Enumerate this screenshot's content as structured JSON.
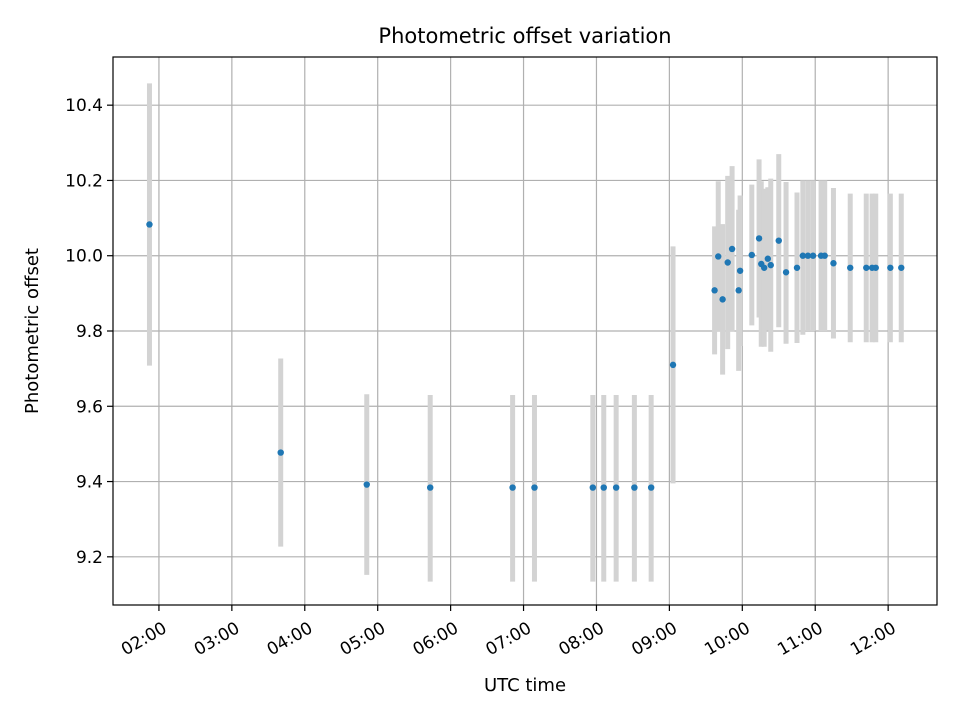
{
  "chart_data": {
    "type": "scatter",
    "title": "Photometric offset variation",
    "xlabel": "UTC time",
    "ylabel": "Photometric offset",
    "x_unit": "hours (UTC)",
    "xlim": [
      1.37,
      12.67
    ],
    "ylim": [
      9.072,
      10.528
    ],
    "grid": true,
    "legend": "none",
    "marker_color": "#1f77b4",
    "errorbar_color": "#d3d3d3",
    "x_ticks": [
      {
        "value": 2,
        "label": "02:00"
      },
      {
        "value": 3,
        "label": "03:00"
      },
      {
        "value": 4,
        "label": "04:00"
      },
      {
        "value": 5,
        "label": "05:00"
      },
      {
        "value": 6,
        "label": "06:00"
      },
      {
        "value": 7,
        "label": "07:00"
      },
      {
        "value": 8,
        "label": "08:00"
      },
      {
        "value": 9,
        "label": "09:00"
      },
      {
        "value": 10,
        "label": "10:00"
      },
      {
        "value": 11,
        "label": "11:00"
      },
      {
        "value": 12,
        "label": "12:00"
      }
    ],
    "y_ticks": [
      {
        "value": 9.2,
        "label": "9.2"
      },
      {
        "value": 9.4,
        "label": "9.4"
      },
      {
        "value": 9.6,
        "label": "9.6"
      },
      {
        "value": 9.8,
        "label": "9.8"
      },
      {
        "value": 10.0,
        "label": "10.0"
      },
      {
        "value": 10.2,
        "label": "10.2"
      },
      {
        "value": 10.4,
        "label": "10.4"
      }
    ],
    "points": [
      {
        "x": 1.87,
        "y": 10.083,
        "lo": 9.708,
        "hi": 10.458
      },
      {
        "x": 3.67,
        "y": 9.477,
        "lo": 9.227,
        "hi": 9.727
      },
      {
        "x": 4.85,
        "y": 9.392,
        "lo": 9.152,
        "hi": 9.632
      },
      {
        "x": 5.72,
        "y": 9.384,
        "lo": 9.134,
        "hi": 9.63
      },
      {
        "x": 6.85,
        "y": 9.384,
        "lo": 9.134,
        "hi": 9.63
      },
      {
        "x": 7.15,
        "y": 9.384,
        "lo": 9.134,
        "hi": 9.63
      },
      {
        "x": 7.95,
        "y": 9.384,
        "lo": 9.134,
        "hi": 9.63
      },
      {
        "x": 8.1,
        "y": 9.384,
        "lo": 9.134,
        "hi": 9.63
      },
      {
        "x": 8.27,
        "y": 9.384,
        "lo": 9.134,
        "hi": 9.63
      },
      {
        "x": 8.52,
        "y": 9.384,
        "lo": 9.134,
        "hi": 9.63
      },
      {
        "x": 8.75,
        "y": 9.384,
        "lo": 9.134,
        "hi": 9.63
      },
      {
        "x": 9.05,
        "y": 9.71,
        "lo": 9.395,
        "hi": 10.025
      },
      {
        "x": 9.62,
        "y": 9.908,
        "lo": 9.738,
        "hi": 10.078
      },
      {
        "x": 9.67,
        "y": 9.998,
        "lo": 9.798,
        "hi": 10.198
      },
      {
        "x": 9.73,
        "y": 9.884,
        "lo": 9.684,
        "hi": 10.084
      },
      {
        "x": 9.8,
        "y": 9.982,
        "lo": 9.752,
        "hi": 10.212
      },
      {
        "x": 9.86,
        "y": 10.018,
        "lo": 9.798,
        "hi": 10.238
      },
      {
        "x": 9.95,
        "y": 9.908,
        "lo": 9.694,
        "hi": 10.122
      },
      {
        "x": 9.97,
        "y": 9.96,
        "lo": 9.76,
        "hi": 10.16
      },
      {
        "x": 10.13,
        "y": 10.002,
        "lo": 9.815,
        "hi": 10.189
      },
      {
        "x": 10.23,
        "y": 10.046,
        "lo": 9.836,
        "hi": 10.256
      },
      {
        "x": 10.26,
        "y": 9.978,
        "lo": 9.758,
        "hi": 10.198
      },
      {
        "x": 10.3,
        "y": 9.968,
        "lo": 9.758,
        "hi": 10.178
      },
      {
        "x": 10.35,
        "y": 9.992,
        "lo": 9.802,
        "hi": 10.182
      },
      {
        "x": 10.39,
        "y": 9.975,
        "lo": 9.745,
        "hi": 10.205
      },
      {
        "x": 10.5,
        "y": 10.04,
        "lo": 9.81,
        "hi": 10.27
      },
      {
        "x": 10.6,
        "y": 9.956,
        "lo": 9.766,
        "hi": 10.196
      },
      {
        "x": 10.75,
        "y": 9.968,
        "lo": 9.768,
        "hi": 10.168
      },
      {
        "x": 10.83,
        "y": 10.0,
        "lo": 9.79,
        "hi": 10.2
      },
      {
        "x": 10.9,
        "y": 10.0,
        "lo": 9.8,
        "hi": 10.2
      },
      {
        "x": 10.97,
        "y": 10.0,
        "lo": 9.8,
        "hi": 10.2
      },
      {
        "x": 11.08,
        "y": 10.0,
        "lo": 9.8,
        "hi": 10.2
      },
      {
        "x": 11.13,
        "y": 10.0,
        "lo": 9.8,
        "hi": 10.2
      },
      {
        "x": 11.25,
        "y": 9.98,
        "lo": 9.78,
        "hi": 10.18
      },
      {
        "x": 11.48,
        "y": 9.968,
        "lo": 9.77,
        "hi": 10.165
      },
      {
        "x": 11.7,
        "y": 9.968,
        "lo": 9.77,
        "hi": 10.165
      },
      {
        "x": 11.78,
        "y": 9.968,
        "lo": 9.77,
        "hi": 10.165
      },
      {
        "x": 11.83,
        "y": 9.968,
        "lo": 9.77,
        "hi": 10.165
      },
      {
        "x": 12.03,
        "y": 9.968,
        "lo": 9.77,
        "hi": 10.165
      },
      {
        "x": 12.18,
        "y": 9.968,
        "lo": 9.77,
        "hi": 10.165
      }
    ]
  }
}
